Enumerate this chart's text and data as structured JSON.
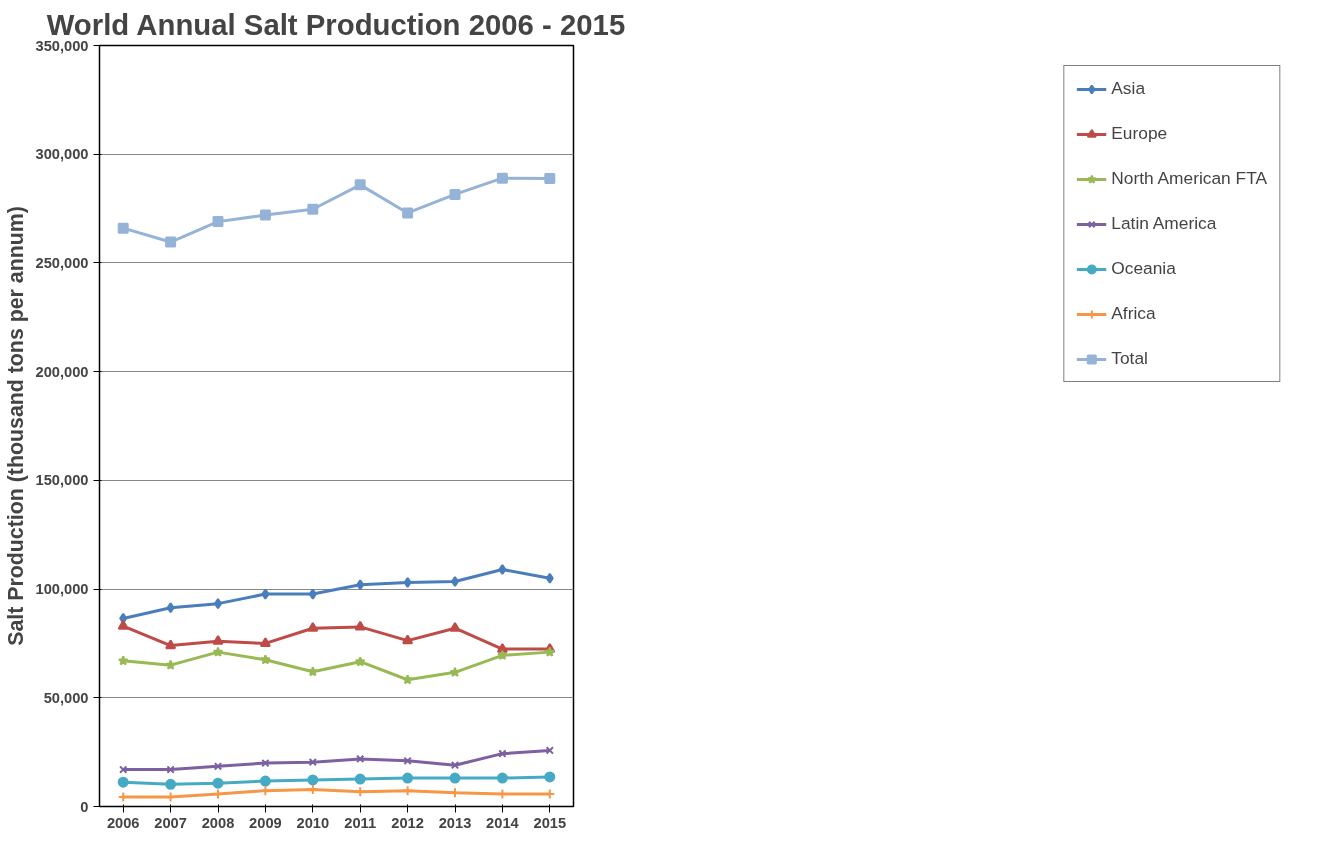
{
  "chart_data": {
    "type": "line",
    "title": "World Annual Salt Production 2006 - 2015",
    "ylabel": "Salt Production (thousand tons per annum)",
    "categories": [
      "2006",
      "2007",
      "2008",
      "2009",
      "2010",
      "2011",
      "2012",
      "2013",
      "2014",
      "2015"
    ],
    "ylim": [
      0,
      350000
    ],
    "yticks": [
      {
        "value": 0,
        "label": "0"
      },
      {
        "value": 50000,
        "label": "50,000"
      },
      {
        "value": 100000,
        "label": "100,000"
      },
      {
        "value": 150000,
        "label": "150,000"
      },
      {
        "value": 200000,
        "label": "200,000"
      },
      {
        "value": 250000,
        "label": "250,000"
      },
      {
        "value": 300000,
        "label": "300,000"
      },
      {
        "value": 350000,
        "label": "350,000"
      }
    ],
    "grid": "y",
    "legend": "right",
    "line_style": "solid",
    "series": [
      {
        "name": "Asia",
        "color": "#4a7ebb",
        "marker": "diamond",
        "values": [
          86500,
          91400,
          93300,
          97700,
          97700,
          102000,
          103000,
          103500,
          109000,
          105000
        ]
      },
      {
        "name": "Europe",
        "color": "#be4b48",
        "marker": "triangle",
        "values": [
          83000,
          74000,
          76000,
          75000,
          82000,
          82600,
          76300,
          82000,
          72400,
          72400
        ]
      },
      {
        "name": "North American FTA",
        "color": "#98b954",
        "marker": "star",
        "values": [
          67000,
          65000,
          71000,
          67500,
          62000,
          66600,
          58300,
          61700,
          69500,
          71000
        ]
      },
      {
        "name": "Latin America",
        "color": "#7d60a0",
        "marker": "cross",
        "values": [
          17000,
          17000,
          18500,
          20000,
          20400,
          21900,
          21000,
          19000,
          24300,
          25800
        ]
      },
      {
        "name": "Oceania",
        "color": "#46aac5",
        "marker": "circle",
        "values": [
          11200,
          10200,
          10700,
          11700,
          12200,
          12600,
          13100,
          13100,
          13100,
          13600
        ]
      },
      {
        "name": "Africa",
        "color": "#f79646",
        "marker": "plus",
        "values": [
          4400,
          4400,
          5800,
          7300,
          7800,
          6800,
          7300,
          6300,
          5800,
          5800
        ]
      },
      {
        "name": "Total",
        "color": "#95b3d7",
        "marker": "square",
        "values": [
          266000,
          259600,
          269000,
          272000,
          274700,
          285900,
          273000,
          281500,
          289000,
          288800
        ]
      }
    ]
  }
}
